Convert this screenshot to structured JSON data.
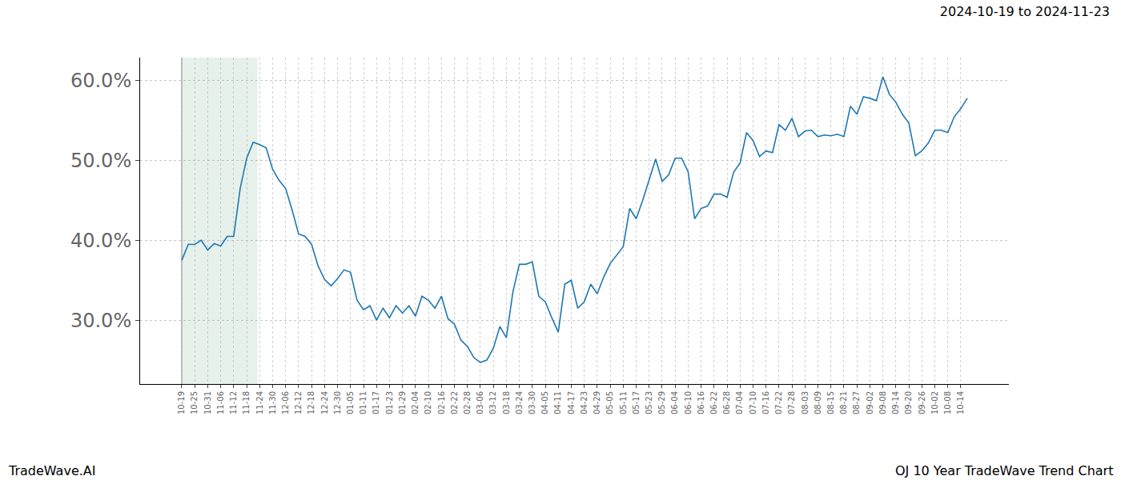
{
  "chart_data": {
    "type": "line",
    "title": "2024-10-19 to 2024-11-23",
    "footer_left": "TradeWave.AI",
    "footer_right": "OJ 10 Year TradeWave Trend Chart",
    "categories": [
      "10-19",
      null,
      "10-25",
      null,
      "10-31",
      null,
      "11-06",
      null,
      "11-12",
      null,
      "11-18",
      null,
      "11-24",
      null,
      "11-30",
      null,
      "12-06",
      null,
      "12-12",
      null,
      "12-18",
      null,
      "12-24",
      null,
      "12-30",
      null,
      "01-05",
      null,
      "01-11",
      null,
      "01-17",
      null,
      "01-23",
      null,
      "01-29",
      null,
      "02-04",
      null,
      "02-10",
      null,
      "02-16",
      null,
      "02-22",
      null,
      "02-28",
      null,
      "03-06",
      null,
      "03-12",
      null,
      "03-18",
      null,
      "03-24",
      null,
      "03-30",
      null,
      "04-05",
      null,
      "04-11",
      null,
      "04-17",
      null,
      "04-23",
      null,
      "04-29",
      null,
      "05-05",
      null,
      "05-11",
      null,
      "05-17",
      null,
      "05-23",
      null,
      "05-29",
      null,
      "06-04",
      null,
      "06-10",
      null,
      "06-16",
      null,
      "06-22",
      null,
      "06-28",
      null,
      "07-04",
      null,
      "07-10",
      null,
      "07-16",
      null,
      "07-22",
      null,
      "07-28",
      null,
      "08-03",
      null,
      "08-09",
      null,
      "08-15",
      null,
      "08-21",
      null,
      "08-27",
      null,
      "09-02",
      null,
      "09-08",
      null,
      "09-14",
      null,
      "09-20",
      null,
      "09-26",
      null,
      "10-02",
      null,
      "10-08",
      null,
      "10-14",
      null
    ],
    "values": [
      37.5,
      39.5,
      39.5,
      40.0,
      38.8,
      39.6,
      39.3,
      40.5,
      40.5,
      46.5,
      50.3,
      52.3,
      52.0,
      51.6,
      48.9,
      47.5,
      46.5,
      43.8,
      40.8,
      40.5,
      39.5,
      36.8,
      35.1,
      34.3,
      35.2,
      36.3,
      36.0,
      32.5,
      31.3,
      31.8,
      30.0,
      31.5,
      30.3,
      31.8,
      30.9,
      31.8,
      30.5,
      33.0,
      32.5,
      31.5,
      33.0,
      30.2,
      29.5,
      27.5,
      26.7,
      25.3,
      24.7,
      25.0,
      26.5,
      29.2,
      27.8,
      33.5,
      37.0,
      37.0,
      37.3,
      33.0,
      32.3,
      30.3,
      28.5,
      34.5,
      35.0,
      31.5,
      32.3,
      34.5,
      33.3,
      35.4,
      37.1,
      38.1,
      39.2,
      44.0,
      42.7,
      45.0,
      47.5,
      50.2,
      47.4,
      48.2,
      50.3,
      50.3,
      48.6,
      42.7,
      44.0,
      44.3,
      45.8,
      45.8,
      45.4,
      48.5,
      49.7,
      53.5,
      52.5,
      50.5,
      51.2,
      51.0,
      54.5,
      53.8,
      55.3,
      53.0,
      53.7,
      53.8,
      53.0,
      53.2,
      53.1,
      53.3,
      53.0,
      56.8,
      55.8,
      58.0,
      57.8,
      57.5,
      60.5,
      58.3,
      57.3,
      55.8,
      54.7,
      50.6,
      51.2,
      52.2,
      53.8,
      53.8,
      53.5,
      55.5,
      56.5,
      57.8
    ],
    "color": "#1f77b4",
    "highlight": [
      0,
      11.67
    ],
    "ylim": [
      22.0,
      62.9
    ],
    "yticks": [
      {
        "value": 30,
        "label": "30.0%"
      },
      {
        "value": 40,
        "label": "40.0%"
      },
      {
        "value": 50,
        "label": "50.0%"
      },
      {
        "value": 60,
        "label": "60.0%"
      }
    ],
    "grid": true
  }
}
